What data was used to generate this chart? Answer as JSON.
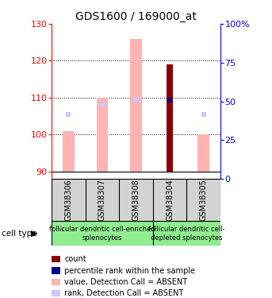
{
  "title": "GDS1600 / 169000_at",
  "samples": [
    "GSM38306",
    "GSM38307",
    "GSM38308",
    "GSM38304",
    "GSM38305"
  ],
  "ylim_left": [
    88,
    130
  ],
  "ylim_right": [
    0,
    100
  ],
  "yticks_left": [
    90,
    100,
    110,
    120,
    130
  ],
  "yticks_right": [
    0,
    25,
    50,
    75,
    100
  ],
  "ytick_labels_right": [
    "0",
    "25",
    "50",
    "75",
    "100%"
  ],
  "dotted_lines": [
    100,
    110,
    120
  ],
  "value_absent": [
    101,
    110,
    126,
    null,
    100
  ],
  "rank_absent_y": [
    105.5,
    108.0,
    109.5,
    null,
    105.5
  ],
  "count_top": [
    null,
    null,
    null,
    119,
    null
  ],
  "rank_present_y": [
    null,
    null,
    null,
    109.3,
    null
  ],
  "color_count_absent": "#ffb3b3",
  "color_count_present": "#8b0000",
  "color_rank_absent": "#c8c8ff",
  "color_rank_present": "#00008b",
  "bg_plot": "#ffffff",
  "bg_sample_box": "#d3d3d3",
  "title_fontsize": 10,
  "tick_fontsize": 8,
  "label_fontsize": 7,
  "legend_fontsize": 7,
  "cell_type_fontsize": 6,
  "group1_label": "follicular dendritic cell-enriched\nsplenocytes",
  "group2_label": "follicular dendritic cell-\ndepleted splenocytes",
  "group_color": "#90ee90",
  "cell_type_label": "cell type"
}
